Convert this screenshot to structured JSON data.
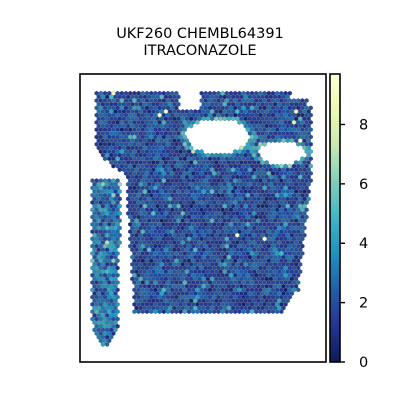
{
  "chart_data": {
    "type": "heatmap",
    "subtype": "hexbin spatial spot map",
    "title_lines": [
      "UKF260 CHEMBL64391",
      "ITRACONAZOLE"
    ],
    "xlabel": "",
    "ylabel": "",
    "colormap": "YlGnBu_r",
    "color_range": [
      0,
      9.7
    ],
    "colorbar_ticks": [
      0,
      2,
      4,
      6,
      8
    ],
    "grid": false,
    "tissue_value_profile": {
      "typical_range": [
        1.0,
        3.0
      ],
      "median": 1.8,
      "left_strip_range": [
        2.5,
        4.5
      ],
      "max_observed": 9.5
    },
    "colors": {
      "low": "#081d58",
      "mid": "#225ea8",
      "midhigh": "#41b6c4",
      "high": "#ffffd9",
      "frame": "#000000"
    }
  }
}
